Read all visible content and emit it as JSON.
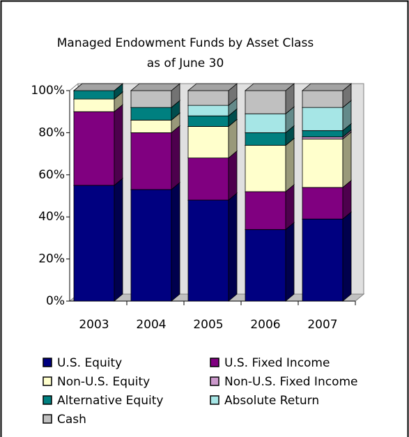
{
  "chart_data": {
    "type": "stacked-bar-3d",
    "title": "Managed Endowment Funds by Asset Class",
    "subtitle": "as of June 30",
    "categories": [
      "2003",
      "2004",
      "2005",
      "2006",
      "2007"
    ],
    "series": [
      {
        "name": "U.S. Equity",
        "color": "#000080",
        "values": [
          55,
          53,
          48,
          34,
          39
        ]
      },
      {
        "name": "U.S. Fixed Income",
        "color": "#800080",
        "values": [
          35,
          27,
          20,
          18,
          15
        ]
      },
      {
        "name": "Non-U.S. Equity",
        "color": "#ffffcc",
        "values": [
          6,
          6,
          15,
          22,
          23
        ]
      },
      {
        "name": "Non-U.S. Fixed Income",
        "color": "#cc99cc",
        "values": [
          0,
          0,
          0,
          0,
          1
        ]
      },
      {
        "name": "Alternative Equity",
        "color": "#008080",
        "values": [
          4,
          6,
          5,
          6,
          3
        ]
      },
      {
        "name": "Absolute Return",
        "color": "#a6e6e6",
        "values": [
          0,
          0,
          5,
          9,
          11
        ]
      },
      {
        "name": "Cash",
        "color": "#c0c0c0",
        "values": [
          0,
          8,
          7,
          11,
          8
        ]
      }
    ],
    "ylim": [
      0,
      100
    ],
    "yticks": [
      {
        "value": 0,
        "label": "0%"
      },
      {
        "value": 20,
        "label": "20%"
      },
      {
        "value": 40,
        "label": "40%"
      },
      {
        "value": 60,
        "label": "60%"
      },
      {
        "value": 80,
        "label": "80%"
      },
      {
        "value": 100,
        "label": "100%"
      }
    ],
    "legend": "bottom"
  }
}
